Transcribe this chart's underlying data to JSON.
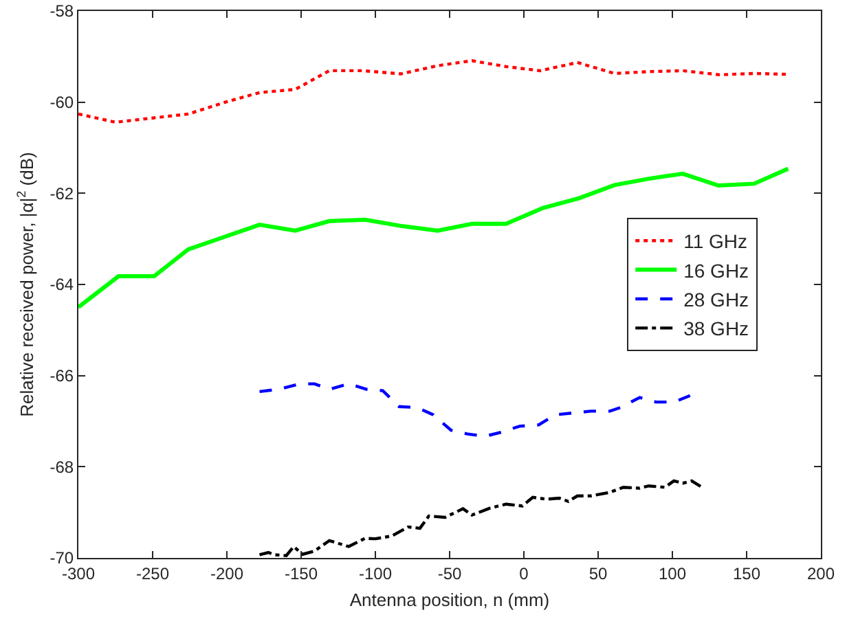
{
  "chart_data": {
    "type": "line",
    "xlabel": "Antenna position, n (mm)",
    "ylabel": "Relative received power, |α|$^{2}$ (dB)",
    "xlim": [
      -300,
      200
    ],
    "xticks": [
      -300,
      -250,
      -200,
      -150,
      -100,
      -50,
      0,
      50,
      100,
      150,
      200
    ],
    "ylim": [
      -70,
      -58
    ],
    "yticks": [
      -70,
      -68,
      -66,
      -64,
      -62,
      -60,
      -58
    ],
    "grid": false,
    "legend": "right",
    "marker": "none",
    "series": [
      {
        "name": "11 GHz",
        "color": "#ff0000",
        "line_style": "dotted",
        "x": [
          -300,
          -275,
          -226,
          -201,
          -178,
          -154,
          -131,
          -108,
          -83,
          -58,
          -35,
          -12,
          11,
          36,
          61,
          84,
          107,
          132,
          155,
          178
        ],
        "values": [
          -60.26,
          -60.44,
          -60.26,
          -60.0,
          -59.79,
          -59.72,
          -59.31,
          -59.31,
          -59.38,
          -59.2,
          -59.09,
          -59.22,
          -59.31,
          -59.13,
          -59.37,
          -59.33,
          -59.31,
          -59.4,
          -59.37,
          -59.39
        ]
      },
      {
        "name": "16 GHz",
        "color": "#00ff00",
        "line_style": "solid",
        "x": [
          -300,
          -273,
          -249,
          -226,
          -202,
          -178,
          -154,
          -131,
          -107,
          -82,
          -58,
          -35,
          -12,
          13,
          37,
          61,
          84,
          107,
          131,
          155,
          178
        ],
        "values": [
          -64.5,
          -63.82,
          -63.82,
          -63.23,
          -62.96,
          -62.69,
          -62.82,
          -62.61,
          -62.58,
          -62.72,
          -62.82,
          -62.67,
          -62.67,
          -62.32,
          -62.11,
          -61.82,
          -61.68,
          -61.57,
          -61.83,
          -61.79,
          -61.46
        ]
      },
      {
        "name": "28 GHz",
        "color": "#0000ff",
        "line_style": "dashed",
        "x": [
          -178,
          -165,
          -151,
          -141,
          -131,
          -118,
          -106,
          -95,
          -84,
          -72,
          -61,
          -49,
          -38,
          -26,
          -15,
          -3,
          10,
          21,
          33,
          45,
          58,
          65,
          78,
          89,
          101,
          115
        ],
        "values": [
          -66.35,
          -66.3,
          -66.18,
          -66.18,
          -66.3,
          -66.18,
          -66.3,
          -66.33,
          -66.68,
          -66.7,
          -66.86,
          -67.2,
          -67.28,
          -67.33,
          -67.24,
          -67.11,
          -67.08,
          -66.86,
          -66.82,
          -66.78,
          -66.78,
          -66.7,
          -66.48,
          -66.58,
          -66.58,
          -66.4
        ]
      },
      {
        "name": "38 GHz",
        "color": "#000000",
        "line_style": "dashdot",
        "x": [
          -178,
          -172,
          -168,
          -160,
          -155,
          -149,
          -141,
          -131,
          -118,
          -107,
          -100,
          -89,
          -78,
          -70,
          -64,
          -53,
          -41,
          -35,
          -23,
          -12,
          -1,
          6,
          15,
          24,
          30,
          36,
          45,
          58,
          67,
          78,
          84,
          95,
          101,
          107,
          113,
          119
        ],
        "values": [
          -69.93,
          -69.88,
          -69.93,
          -69.95,
          -69.75,
          -69.92,
          -69.85,
          -69.62,
          -69.75,
          -69.57,
          -69.58,
          -69.52,
          -69.32,
          -69.35,
          -69.08,
          -69.11,
          -68.92,
          -69.06,
          -68.91,
          -68.82,
          -68.86,
          -68.67,
          -68.71,
          -68.69,
          -68.76,
          -68.64,
          -68.64,
          -68.56,
          -68.45,
          -68.47,
          -68.42,
          -68.45,
          -68.31,
          -68.36,
          -68.31,
          -68.43
        ]
      }
    ]
  }
}
